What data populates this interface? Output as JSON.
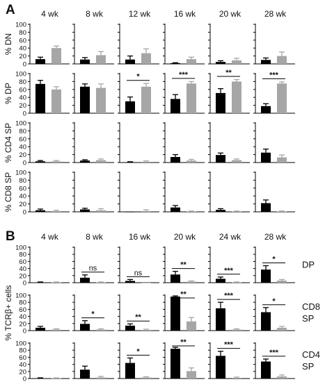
{
  "figure": {
    "colors": {
      "black": "#000000",
      "gray": "#a6a6a6",
      "axis": "#000000"
    },
    "panel_labels": {
      "A": "A",
      "B": "B"
    }
  },
  "chart_data": [
    {
      "type": "bar",
      "panel": "A",
      "ylabel": "% DN",
      "ylim": [
        0,
        100
      ],
      "yticks": [
        0,
        20,
        40,
        60,
        80,
        100
      ],
      "groups": [
        {
          "title": "4 wk",
          "values": [
            12,
            40
          ],
          "errors": [
            5,
            5
          ],
          "annotation": ""
        },
        {
          "title": "8 wk",
          "values": [
            11,
            22
          ],
          "errors": [
            5,
            9
          ],
          "annotation": ""
        },
        {
          "title": "12 wk",
          "values": [
            11,
            27
          ],
          "errors": [
            9,
            11
          ],
          "annotation": ""
        },
        {
          "title": "16 wk",
          "values": [
            2,
            12
          ],
          "errors": [
            1,
            5
          ],
          "annotation": ""
        },
        {
          "title": "20 wk",
          "values": [
            5,
            9
          ],
          "errors": [
            3,
            5
          ],
          "annotation": ""
        },
        {
          "title": "28 wk",
          "values": [
            10,
            20
          ],
          "errors": [
            5,
            10
          ],
          "annotation": ""
        }
      ]
    },
    {
      "type": "bar",
      "panel": "A",
      "ylabel": "% DP",
      "ylim": [
        0,
        100
      ],
      "yticks": [
        0,
        20,
        40,
        60,
        80,
        100
      ],
      "groups": [
        {
          "title": "",
          "values": [
            74,
            60
          ],
          "errors": [
            9,
            7
          ],
          "annotation": ""
        },
        {
          "title": "",
          "values": [
            67,
            64
          ],
          "errors": [
            7,
            10
          ],
          "annotation": ""
        },
        {
          "title": "",
          "values": [
            30,
            67
          ],
          "errors": [
            11,
            8
          ],
          "annotation": "*"
        },
        {
          "title": "",
          "values": [
            36,
            75
          ],
          "errors": [
            11,
            5
          ],
          "annotation": "***"
        },
        {
          "title": "",
          "values": [
            51,
            80
          ],
          "errors": [
            11,
            5
          ],
          "annotation": "**"
        },
        {
          "title": "",
          "values": [
            18,
            75
          ],
          "errors": [
            6,
            4
          ],
          "annotation": "***"
        }
      ]
    },
    {
      "type": "bar",
      "panel": "A",
      "ylabel": "% CD4 SP",
      "ylim": [
        0,
        100
      ],
      "yticks": [
        0,
        20,
        40,
        60,
        80,
        100
      ],
      "groups": [
        {
          "title": "",
          "values": [
            3,
            3
          ],
          "errors": [
            2,
            2
          ],
          "annotation": ""
        },
        {
          "title": "",
          "values": [
            5,
            6
          ],
          "errors": [
            2,
            3
          ],
          "annotation": ""
        },
        {
          "title": "",
          "values": [
            1,
            2
          ],
          "errors": [
            1,
            2
          ],
          "annotation": ""
        },
        {
          "title": "",
          "values": [
            14,
            5
          ],
          "errors": [
            6,
            3
          ],
          "annotation": ""
        },
        {
          "title": "",
          "values": [
            19,
            6
          ],
          "errors": [
            5,
            3
          ],
          "annotation": ""
        },
        {
          "title": "",
          "values": [
            25,
            13
          ],
          "errors": [
            9,
            6
          ],
          "annotation": ""
        }
      ]
    },
    {
      "type": "bar",
      "panel": "A",
      "ylabel": "% CD8 SP",
      "ylim": [
        0,
        100
      ],
      "yticks": [
        0,
        20,
        40,
        60,
        80,
        100
      ],
      "groups": [
        {
          "title": "",
          "values": [
            4,
            2
          ],
          "errors": [
            3,
            2
          ],
          "annotation": ""
        },
        {
          "title": "",
          "values": [
            6,
            4
          ],
          "errors": [
            3,
            4
          ],
          "annotation": ""
        },
        {
          "title": "",
          "values": [
            0,
            2
          ],
          "errors": [
            0,
            3
          ],
          "annotation": ""
        },
        {
          "title": "",
          "values": [
            11,
            1
          ],
          "errors": [
            5,
            1
          ],
          "annotation": ""
        },
        {
          "title": "",
          "values": [
            5,
            1
          ],
          "errors": [
            3,
            1
          ],
          "annotation": ""
        },
        {
          "title": "",
          "values": [
            22,
            1
          ],
          "errors": [
            8,
            1
          ],
          "annotation": ""
        }
      ]
    },
    {
      "type": "bar",
      "panel": "B",
      "ylabel": "% TCRβ+ cells",
      "row_label": [
        "DP"
      ],
      "ylim": [
        0,
        100
      ],
      "yticks": [
        0,
        20,
        40,
        60,
        80,
        100
      ],
      "groups": [
        {
          "title": "4 wk",
          "values": [
            1,
            1
          ],
          "errors": [
            1,
            1
          ],
          "annotation": ""
        },
        {
          "title": "8 wk",
          "values": [
            14,
            1
          ],
          "errors": [
            8,
            1
          ],
          "annotation": "ns"
        },
        {
          "title": "16 wk",
          "values": [
            5,
            0
          ],
          "errors": [
            4,
            0
          ],
          "annotation": "ns"
        },
        {
          "title": "20 wk",
          "values": [
            23,
            3
          ],
          "errors": [
            9,
            2
          ],
          "annotation": "**"
        },
        {
          "title": "24 wk",
          "values": [
            11,
            1
          ],
          "errors": [
            5,
            1
          ],
          "annotation": "***"
        },
        {
          "title": "28 wk",
          "values": [
            37,
            6
          ],
          "errors": [
            11,
            3
          ],
          "annotation": "*"
        }
      ]
    },
    {
      "type": "bar",
      "panel": "B",
      "row_label": [
        "CD8",
        "SP"
      ],
      "ylim": [
        0,
        100
      ],
      "yticks": [
        0,
        20,
        40,
        60,
        80,
        100
      ],
      "groups": [
        {
          "title": "",
          "values": [
            8,
            3
          ],
          "errors": [
            4,
            2
          ],
          "annotation": ""
        },
        {
          "title": "",
          "values": [
            19,
            3
          ],
          "errors": [
            9,
            2
          ],
          "annotation": "*"
        },
        {
          "title": "",
          "values": [
            14,
            2
          ],
          "errors": [
            5,
            2
          ],
          "annotation": "**"
        },
        {
          "title": "",
          "values": [
            96,
            26
          ],
          "errors": [
            2,
            11
          ],
          "annotation": "**"
        },
        {
          "title": "",
          "values": [
            63,
            3
          ],
          "errors": [
            17,
            2
          ],
          "annotation": "***"
        },
        {
          "title": "",
          "values": [
            52,
            8
          ],
          "errors": [
            13,
            4
          ],
          "annotation": "*"
        }
      ]
    },
    {
      "type": "bar",
      "panel": "B",
      "row_label": [
        "CD4",
        "SP"
      ],
      "ylim": [
        0,
        100
      ],
      "yticks": [
        0,
        20,
        40,
        60,
        80,
        100
      ],
      "groups": [
        {
          "title": "",
          "values": [
            1,
            1
          ],
          "errors": [
            1,
            1
          ],
          "annotation": ""
        },
        {
          "title": "",
          "values": [
            25,
            3
          ],
          "errors": [
            10,
            3
          ],
          "annotation": ""
        },
        {
          "title": "",
          "values": [
            44,
            3
          ],
          "errors": [
            14,
            2
          ],
          "annotation": "*"
        },
        {
          "title": "",
          "values": [
            84,
            21
          ],
          "errors": [
            4,
            9
          ],
          "annotation": "**"
        },
        {
          "title": "",
          "values": [
            64,
            2
          ],
          "errors": [
            13,
            2
          ],
          "annotation": "***"
        },
        {
          "title": "",
          "values": [
            48,
            6
          ],
          "errors": [
            7,
            4
          ],
          "annotation": "***"
        }
      ]
    }
  ]
}
